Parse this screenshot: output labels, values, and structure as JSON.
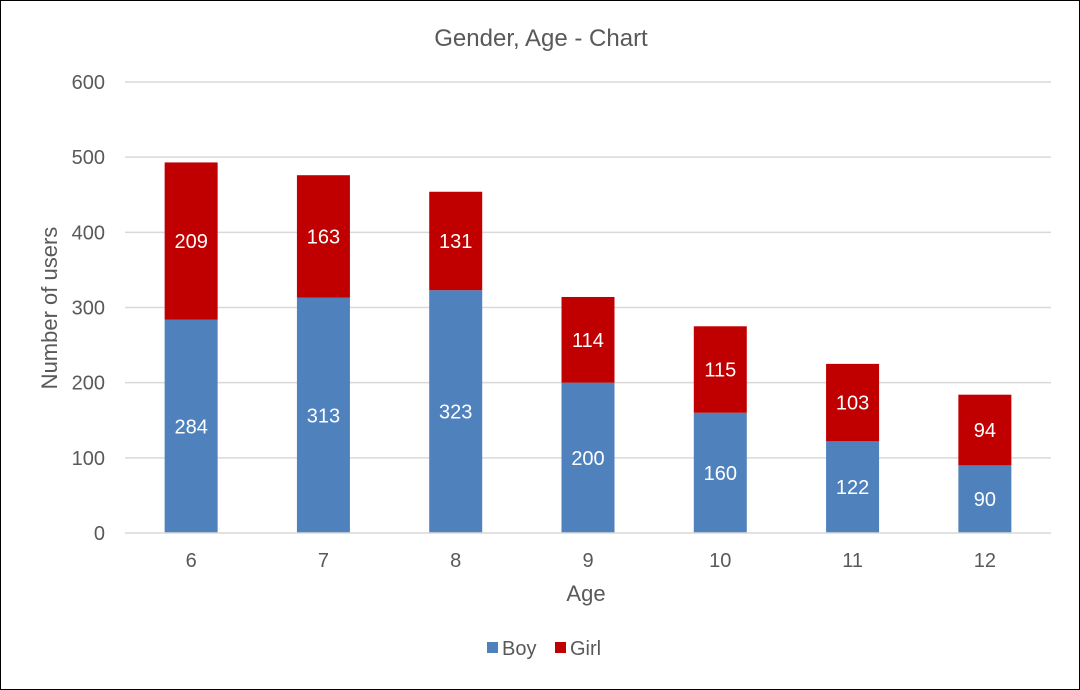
{
  "chart_data": {
    "type": "bar",
    "stacked": true,
    "title": "Gender, Age - Chart",
    "xlabel": "Age",
    "ylabel": "Number of users",
    "categories": [
      "6",
      "7",
      "8",
      "9",
      "10",
      "11",
      "12"
    ],
    "series": [
      {
        "name": "Boy",
        "color": "#4F81BD",
        "values": [
          284,
          313,
          323,
          200,
          160,
          122,
          90
        ]
      },
      {
        "name": "Girl",
        "color": "#C00000",
        "values": [
          209,
          163,
          131,
          114,
          115,
          103,
          94
        ]
      }
    ],
    "ylim": [
      0,
      600
    ],
    "yticks": [
      0,
      100,
      200,
      300,
      400,
      500,
      600
    ],
    "grid": true,
    "legend": "bottom",
    "data_labels": true
  }
}
